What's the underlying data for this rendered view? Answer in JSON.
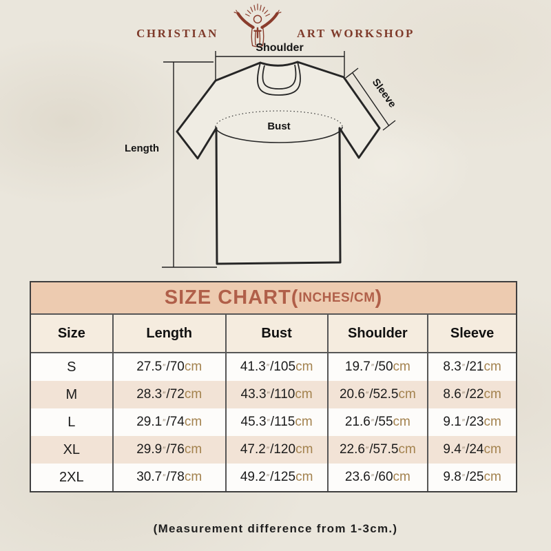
{
  "logo": {
    "text_left": "CHRISTIAN",
    "text_right": "ART WORKSHOP",
    "figure": "jesus-open-arms-icon"
  },
  "diagram": {
    "shoulder_label": "Shoulder",
    "sleeve_label": "Sleeve",
    "bust_label": "Bust",
    "length_label": "Length"
  },
  "size_chart": {
    "title": "SIZE CHART",
    "units_open_paren": "(",
    "units_suffix": "INCHES/CM",
    "units_close_paren": ")",
    "columns": [
      "Size",
      "Length",
      "Bust",
      "Shoulder",
      "Sleeve"
    ],
    "rows": [
      {
        "size": "S",
        "measurements": [
          {
            "in": "27.5",
            "cm": "70"
          },
          {
            "in": "41.3",
            "cm": "105"
          },
          {
            "in": "19.7",
            "cm": "50"
          },
          {
            "in": "8.3",
            "cm": "21"
          }
        ]
      },
      {
        "size": "M",
        "measurements": [
          {
            "in": "28.3",
            "cm": "72"
          },
          {
            "in": "43.3",
            "cm": "110"
          },
          {
            "in": "20.6",
            "cm": "52.5"
          },
          {
            "in": "8.6",
            "cm": "22"
          }
        ]
      },
      {
        "size": "L",
        "measurements": [
          {
            "in": "29.1",
            "cm": "74"
          },
          {
            "in": "45.3",
            "cm": "115"
          },
          {
            "in": "21.6",
            "cm": "55"
          },
          {
            "in": "9.1",
            "cm": "23"
          }
        ]
      },
      {
        "size": "XL",
        "measurements": [
          {
            "in": "29.9",
            "cm": "76"
          },
          {
            "in": "47.2",
            "cm": "120"
          },
          {
            "in": "22.6",
            "cm": "57.5"
          },
          {
            "in": "9.4",
            "cm": "24"
          }
        ]
      },
      {
        "size": "2XL",
        "measurements": [
          {
            "in": "30.7",
            "cm": "78"
          },
          {
            "in": "49.2",
            "cm": "125"
          },
          {
            "in": "23.6",
            "cm": "60"
          },
          {
            "in": "9.8",
            "cm": "25"
          }
        ]
      }
    ]
  },
  "footer": {
    "note": "(Measurement difference from 1-3cm.)"
  },
  "colors": {
    "accent_maroon": "#7e3a2a",
    "title_red": "#b05f49",
    "band_bg": "#edcbb0",
    "header_row_bg": "#f5ecdf",
    "alt_row_bg": "#f2e3d6",
    "cm_text": "#a3824e",
    "inch_mark": "#8f7f6b",
    "page_bg": "#eae6dc"
  }
}
